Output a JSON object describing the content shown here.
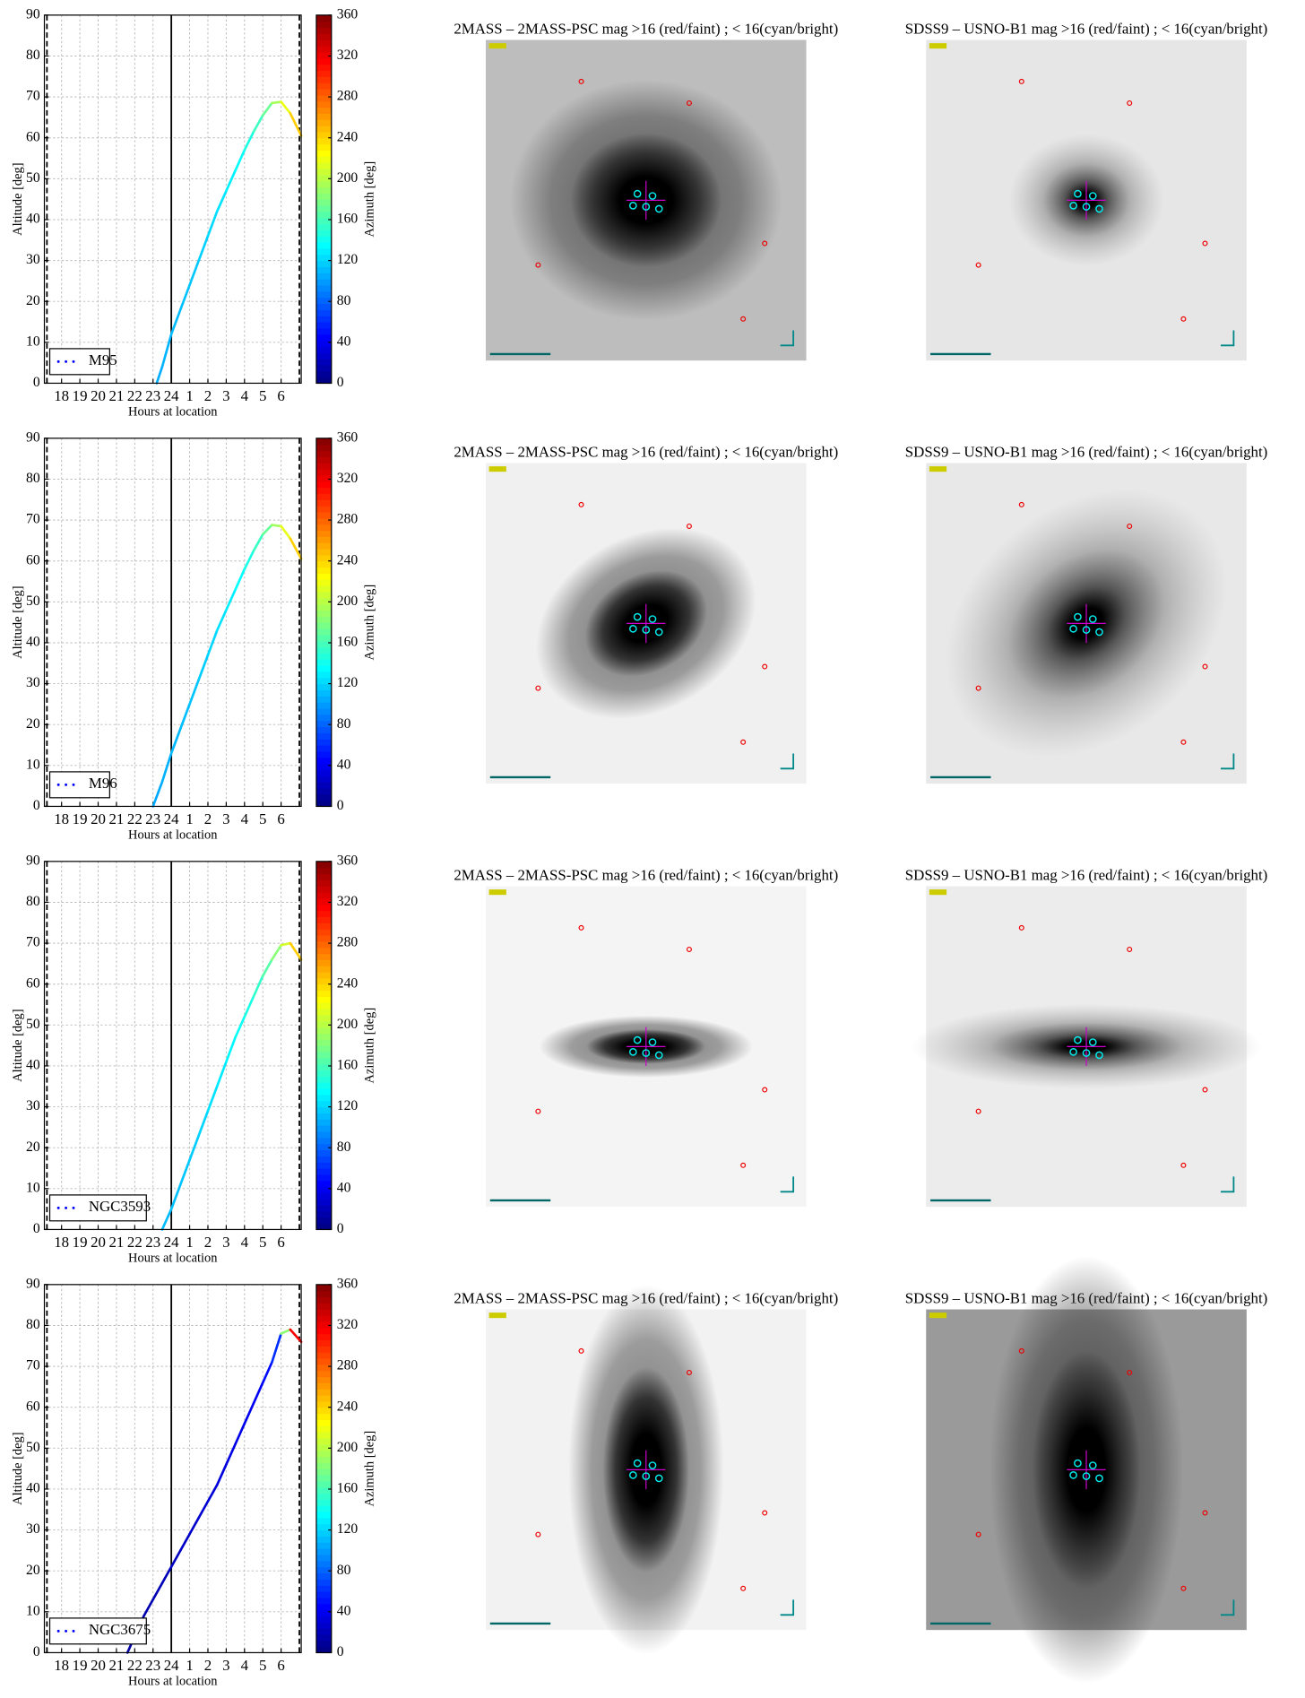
{
  "chart_data": [
    {
      "type": "line",
      "xlabel": "Hours at location",
      "ylabel": "Altitude [deg]",
      "zlabel": "Azimuth [deg]",
      "colormap": "jet",
      "grid": true,
      "legend": "lower left",
      "xlim": [
        17.06,
        31.1
      ],
      "xticks": [
        18,
        19,
        20,
        21,
        22,
        23,
        24,
        {
          "value": 25,
          "label": "1"
        },
        {
          "value": 26,
          "label": "2"
        },
        {
          "value": 27,
          "label": "3"
        },
        {
          "value": 28,
          "label": "4"
        },
        {
          "value": 29,
          "label": "5"
        },
        {
          "value": 30,
          "label": "6"
        }
      ],
      "ylim": [
        0,
        90
      ],
      "yticks": [
        0,
        10,
        20,
        30,
        40,
        50,
        60,
        70,
        80,
        90
      ],
      "zlim": [
        0,
        360
      ],
      "zticks": [
        0,
        40,
        80,
        120,
        160,
        200,
        240,
        280,
        320,
        360
      ],
      "vlines": [
        {
          "value": 17.2,
          "style": "dashed"
        },
        {
          "value": 24,
          "style": "solid"
        },
        {
          "value": 31,
          "style": "dashed"
        }
      ],
      "series": [
        {
          "name": "M95",
          "color": "#0000ff",
          "x": [
            23.2,
            23.5,
            24,
            24.5,
            25,
            25.5,
            26,
            26.5,
            27,
            27.5,
            28,
            28.5,
            29,
            29.5,
            30,
            30.5,
            31.1
          ],
          "values": [
            0,
            4,
            12,
            18,
            24,
            30,
            36,
            42,
            47,
            52,
            57,
            61.5,
            65.5,
            68.5,
            68.8,
            66,
            60.5
          ],
          "azimuth": [
            105,
            107,
            110,
            112,
            114,
            117,
            120,
            124,
            128,
            133,
            140,
            150,
            163,
            182,
            205,
            230,
            255
          ]
        }
      ]
    },
    {
      "type": "line",
      "xlabel": "Hours at location",
      "ylabel": "Altitude [deg]",
      "zlabel": "Azimuth [deg]",
      "colormap": "jet",
      "grid": true,
      "legend": "lower left",
      "xlim": [
        17.06,
        31.1
      ],
      "xticks": [
        18,
        19,
        20,
        21,
        22,
        23,
        24,
        {
          "value": 25,
          "label": "1"
        },
        {
          "value": 26,
          "label": "2"
        },
        {
          "value": 27,
          "label": "3"
        },
        {
          "value": 28,
          "label": "4"
        },
        {
          "value": 29,
          "label": "5"
        },
        {
          "value": 30,
          "label": "6"
        }
      ],
      "ylim": [
        0,
        90
      ],
      "yticks": [
        0,
        10,
        20,
        30,
        40,
        50,
        60,
        70,
        80,
        90
      ],
      "zlim": [
        0,
        360
      ],
      "zticks": [
        0,
        40,
        80,
        120,
        160,
        200,
        240,
        280,
        320,
        360
      ],
      "vlines": [
        {
          "value": 17.2,
          "style": "dashed"
        },
        {
          "value": 24,
          "style": "solid"
        },
        {
          "value": 31,
          "style": "dashed"
        }
      ],
      "series": [
        {
          "name": "M96",
          "color": "#0000ff",
          "x": [
            23.0,
            23.5,
            24,
            24.5,
            25,
            25.5,
            26,
            26.5,
            27,
            27.5,
            28,
            28.5,
            29,
            29.5,
            30,
            30.5,
            31.1
          ],
          "values": [
            0,
            6,
            13,
            19,
            25,
            31,
            37,
            43,
            48,
            53,
            58,
            62.5,
            66.5,
            68.8,
            68.5,
            65.5,
            60.5
          ],
          "azimuth": [
            104,
            106,
            109,
            111,
            113,
            116,
            119,
            123,
            127,
            132,
            139,
            149,
            162,
            181,
            204,
            229,
            254
          ]
        }
      ]
    },
    {
      "type": "line",
      "xlabel": "Hours at location",
      "ylabel": "Altitude [deg]",
      "zlabel": "Azimuth [deg]",
      "colormap": "jet",
      "grid": true,
      "legend": "lower left",
      "xlim": [
        17.06,
        31.1
      ],
      "xticks": [
        18,
        19,
        20,
        21,
        22,
        23,
        24,
        {
          "value": 25,
          "label": "1"
        },
        {
          "value": 26,
          "label": "2"
        },
        {
          "value": 27,
          "label": "3"
        },
        {
          "value": 28,
          "label": "4"
        },
        {
          "value": 29,
          "label": "5"
        },
        {
          "value": 30,
          "label": "6"
        }
      ],
      "ylim": [
        0,
        90
      ],
      "yticks": [
        0,
        10,
        20,
        30,
        40,
        50,
        60,
        70,
        80,
        90
      ],
      "zlim": [
        0,
        360
      ],
      "zticks": [
        0,
        40,
        80,
        120,
        160,
        200,
        240,
        280,
        320,
        360
      ],
      "vlines": [
        {
          "value": 17.2,
          "style": "dashed"
        },
        {
          "value": 24,
          "style": "solid"
        },
        {
          "value": 31,
          "style": "dashed"
        }
      ],
      "series": [
        {
          "name": "NGC3593",
          "color": "#0000ff",
          "x": [
            23.5,
            24,
            24.5,
            25,
            25.5,
            26,
            26.5,
            27,
            27.5,
            28,
            28.5,
            29,
            29.5,
            30,
            30.5,
            31.1
          ],
          "values": [
            0,
            5,
            11,
            17,
            23,
            29,
            35,
            41,
            47,
            52,
            57,
            62,
            66,
            69.5,
            70,
            66
          ],
          "azimuth": [
            110,
            112,
            114,
            116,
            119,
            122,
            126,
            130,
            135,
            141,
            148,
            158,
            172,
            195,
            225,
            260
          ]
        }
      ]
    },
    {
      "type": "line",
      "xlabel": "Hours at location",
      "ylabel": "Altitude [deg]",
      "zlabel": "Azimuth [deg]",
      "colormap": "jet",
      "grid": true,
      "legend": "lower left",
      "xlim": [
        17.06,
        31.1
      ],
      "xticks": [
        18,
        19,
        20,
        21,
        22,
        23,
        24,
        {
          "value": 25,
          "label": "1"
        },
        {
          "value": 26,
          "label": "2"
        },
        {
          "value": 27,
          "label": "3"
        },
        {
          "value": 28,
          "label": "4"
        },
        {
          "value": 29,
          "label": "5"
        },
        {
          "value": 30,
          "label": "6"
        }
      ],
      "ylim": [
        0,
        90
      ],
      "yticks": [
        0,
        10,
        20,
        30,
        40,
        50,
        60,
        70,
        80,
        90
      ],
      "zlim": [
        0,
        360
      ],
      "zticks": [
        0,
        40,
        80,
        120,
        160,
        200,
        240,
        280,
        320,
        360
      ],
      "vlines": [
        {
          "value": 17.2,
          "style": "dashed"
        },
        {
          "value": 24,
          "style": "solid"
        },
        {
          "value": 31,
          "style": "dashed"
        }
      ],
      "series": [
        {
          "name": "NGC3675",
          "color": "#0000ff",
          "x": [
            21.6,
            22,
            22.5,
            23,
            23.5,
            24,
            24.5,
            25,
            25.5,
            26,
            26.5,
            27,
            27.5,
            28,
            28.5,
            29,
            29.5,
            30,
            30.5,
            31.1
          ],
          "values": [
            0,
            4,
            9,
            13,
            17,
            21,
            25,
            29,
            33,
            37,
            41,
            46,
            51,
            56,
            61,
            66,
            71,
            78,
            79,
            76
          ],
          "azimuth": [
            12,
            14,
            16,
            18,
            20,
            22,
            24,
            26,
            28,
            30,
            32,
            34,
            36,
            38,
            41,
            45,
            52,
            70,
            300,
            335
          ]
        }
      ]
    }
  ],
  "image_panels": [
    [
      {
        "title": "2MASS – 2MASS-PSC mag >16 (red/faint) ; < 16(cyan/bright)"
      },
      {
        "title": "SDSS9 – USNO-B1 mag >16 (red/faint) ; < 16(cyan/bright)"
      }
    ],
    [
      {
        "title": "2MASS – 2MASS-PSC mag >16 (red/faint) ; < 16(cyan/bright)"
      },
      {
        "title": "SDSS9 – USNO-B1 mag >16 (red/faint) ; < 16(cyan/bright)"
      }
    ],
    [
      {
        "title": "2MASS – 2MASS-PSC mag >16 (red/faint) ; < 16(cyan/bright)"
      },
      {
        "title": "SDSS9 – USNO-B1 mag >16 (red/faint) ; < 16(cyan/bright)"
      }
    ],
    [
      {
        "title": "2MASS – 2MASS-PSC mag >16 (red/faint) ; < 16(cyan/bright)"
      },
      {
        "title": "SDSS9 – USNO-B1 mag >16 (red/faint) ; < 16(cyan/bright)"
      }
    ]
  ]
}
